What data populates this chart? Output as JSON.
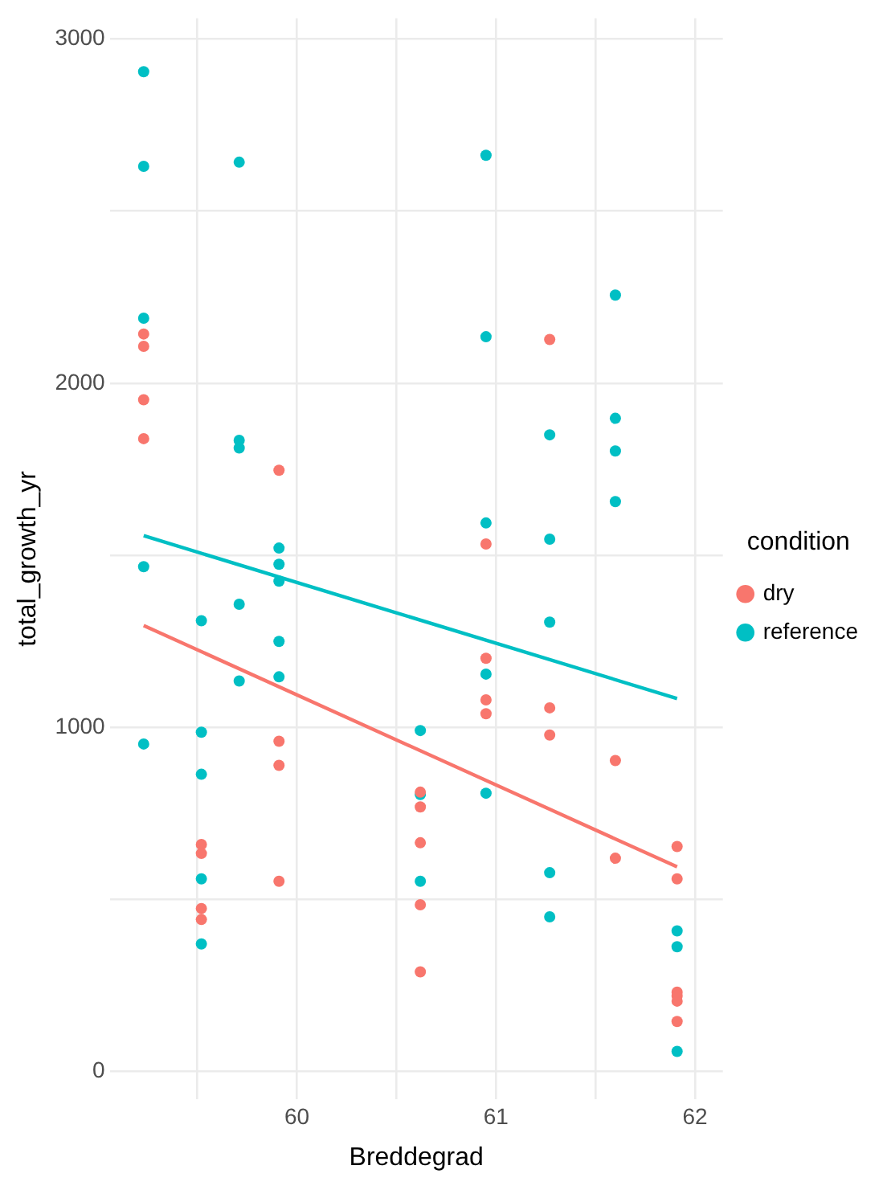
{
  "chart_data": {
    "type": "scatter",
    "xlabel": "Breddegrad",
    "ylabel": "total_growth_yr",
    "legend_title": "condition",
    "legend": "right",
    "grid": true,
    "marker": "circle",
    "xlim": [
      59.06,
      62.14
    ],
    "ylim": [
      -80,
      3060
    ],
    "xticks": [
      {
        "value": 59.5,
        "label": null
      },
      60,
      {
        "value": 60.5,
        "label": null
      },
      61,
      {
        "value": 61.5,
        "label": null
      },
      62
    ],
    "yticks": [
      0,
      {
        "value": 500,
        "label": null
      },
      1000,
      {
        "value": 1500,
        "label": null
      },
      2000,
      {
        "value": 2500,
        "label": null
      },
      3000
    ],
    "series": [
      {
        "name": "dry",
        "color": "#f8766d",
        "x": [
          59.23,
          59.23,
          59.23,
          59.23,
          59.52,
          59.52,
          59.52,
          59.52,
          59.91,
          59.91,
          59.91,
          59.91,
          60.62,
          60.62,
          60.62,
          60.62,
          60.62,
          60.95,
          60.95,
          60.95,
          60.95,
          61.27,
          61.27,
          61.27,
          61.6,
          61.6,
          61.91,
          61.91,
          61.91,
          61.91,
          61.91,
          61.91
        ],
        "values": [
          2143,
          2107,
          1952,
          1839,
          660,
          634,
          474,
          442,
          1747,
          960,
          890,
          553,
          812,
          769,
          665,
          485,
          290,
          1533,
          1201,
          1080,
          1040,
          2127,
          1057,
          978,
          904,
          620,
          654,
          560,
          231,
          220,
          205,
          146
        ]
      },
      {
        "name": "reference",
        "color": "#00bfc4",
        "x": [
          59.23,
          59.23,
          59.23,
          59.23,
          59.23,
          59.52,
          59.52,
          59.52,
          59.52,
          59.52,
          59.71,
          59.71,
          59.71,
          59.71,
          59.71,
          59.91,
          59.91,
          59.91,
          59.91,
          59.91,
          60.62,
          60.62,
          60.62,
          60.95,
          60.95,
          60.95,
          60.95,
          60.95,
          61.27,
          61.27,
          61.27,
          61.27,
          61.27,
          61.6,
          61.6,
          61.6,
          61.6,
          61.91,
          61.91,
          61.91
        ],
        "values": [
          2905,
          2630,
          2189,
          1467,
          952,
          1310,
          986,
          864,
          560,
          371,
          2642,
          1834,
          1812,
          1358,
          1135,
          1521,
          1474,
          1425,
          1250,
          1147,
          991,
          805,
          553,
          2662,
          2135,
          1594,
          1155,
          809,
          1850,
          1547,
          1306,
          578,
          450,
          2256,
          1898,
          1803,
          1656,
          409,
          363,
          59
        ]
      },
      {
        "type": "line",
        "color": "#f8766d",
        "marker": "none",
        "x": [
          59.23,
          61.91
        ],
        "values": [
          1296,
          595
        ]
      },
      {
        "type": "line",
        "color": "#00bfc4",
        "marker": "none",
        "x": [
          59.23,
          61.91
        ],
        "values": [
          1557,
          1084
        ]
      }
    ]
  }
}
